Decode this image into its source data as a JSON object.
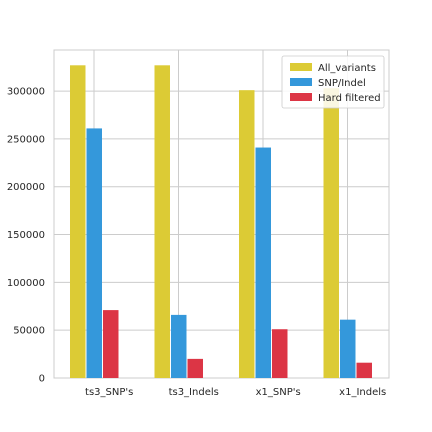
{
  "chart_data": {
    "type": "bar",
    "title": "",
    "xlabel": "",
    "ylabel": "",
    "categories": [
      "ts3_SNP's",
      "ts3_Indels",
      "x1_SNP's",
      "x1_Indels"
    ],
    "series": [
      {
        "name": "All_variants",
        "color": "#dccb35",
        "values": [
          327000,
          327000,
          301000,
          303000
        ]
      },
      {
        "name": "SNP/Indel",
        "color": "#3498db",
        "values": [
          261000,
          66000,
          241000,
          61000
        ]
      },
      {
        "name": "Hard filtered",
        "color": "#dc3545",
        "values": [
          71000,
          20000,
          51000,
          16000
        ]
      }
    ],
    "ylim": [
      0,
      343000
    ],
    "yticks": [
      0,
      50000,
      100000,
      150000,
      200000,
      250000,
      300000
    ],
    "grid": true,
    "legend_position": "top-right"
  }
}
